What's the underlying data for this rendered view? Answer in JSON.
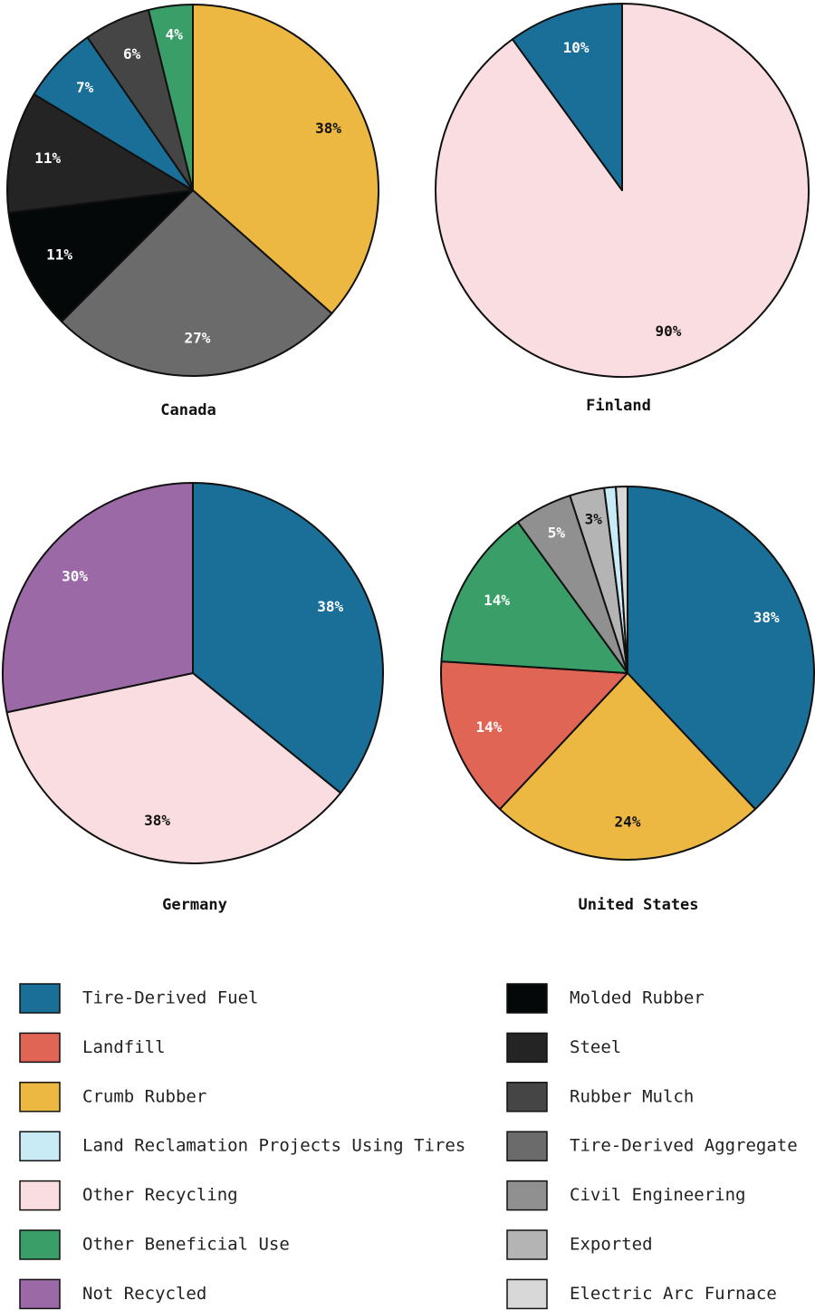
{
  "chart_data": [
    {
      "type": "pie",
      "title": "Canada",
      "categories": [
        "Crumb Rubber",
        "Tire-Derived Aggregate",
        "Molded Rubber",
        "Steel",
        "Tire-Derived Fuel",
        "Rubber Mulch",
        "Other Beneficial Use"
      ],
      "values": [
        38,
        27,
        11,
        11,
        7,
        6,
        4
      ],
      "value_labels": [
        "38%",
        "27%",
        "11%",
        "11%",
        "7%",
        "6%",
        "4%"
      ]
    },
    {
      "type": "pie",
      "title": "Finland",
      "categories": [
        "Other Recycling",
        "Tire-Derived Fuel"
      ],
      "values": [
        90,
        10
      ],
      "value_labels": [
        "90%",
        "10%"
      ]
    },
    {
      "type": "pie",
      "title": "Germany",
      "categories": [
        "Tire-Derived Fuel",
        "Other Recycling",
        "Not Recycled"
      ],
      "values": [
        38,
        38,
        30
      ],
      "value_labels": [
        "38%",
        "38%",
        "30%"
      ]
    },
    {
      "type": "pie",
      "title": "United States",
      "categories": [
        "Tire-Derived Fuel",
        "Crumb Rubber",
        "Landfill",
        "Other Beneficial Use",
        "Civil Engineering",
        "Exported",
        "Land Reclamation Projects Using Tires",
        "Electric Arc Furnace"
      ],
      "values": [
        38,
        24,
        14,
        14,
        5,
        3,
        1,
        1
      ],
      "value_labels": [
        "38%",
        "24%",
        "14%",
        "14%",
        "5%",
        "3%",
        null,
        null
      ]
    }
  ],
  "legend": {
    "items": [
      {
        "name": "Tire-Derived Fuel",
        "color": "#1a6f98"
      },
      {
        "name": "Landfill",
        "color": "#e06555"
      },
      {
        "name": "Crumb Rubber",
        "color": "#ecb842"
      },
      {
        "name": "Land Reclamation Projects Using Tires",
        "color": "#c9ebf6"
      },
      {
        "name": "Other Recycling",
        "color": "#f9dde0"
      },
      {
        "name": "Other Beneficial Use",
        "color": "#3a9e69"
      },
      {
        "name": "Not Recycled",
        "color": "#9a69a6"
      },
      {
        "name": "Molded Rubber",
        "color": "#050808"
      },
      {
        "name": "Steel",
        "color": "#242424"
      },
      {
        "name": "Rubber Mulch",
        "color": "#454545"
      },
      {
        "name": "Tire-Derived Aggregate",
        "color": "#6a6b6a"
      },
      {
        "name": "Civil Engineering",
        "color": "#909090"
      },
      {
        "name": "Exported",
        "color": "#b4b4b4"
      },
      {
        "name": "Electric Arc Furnace",
        "color": "#d8d8d8"
      }
    ]
  }
}
